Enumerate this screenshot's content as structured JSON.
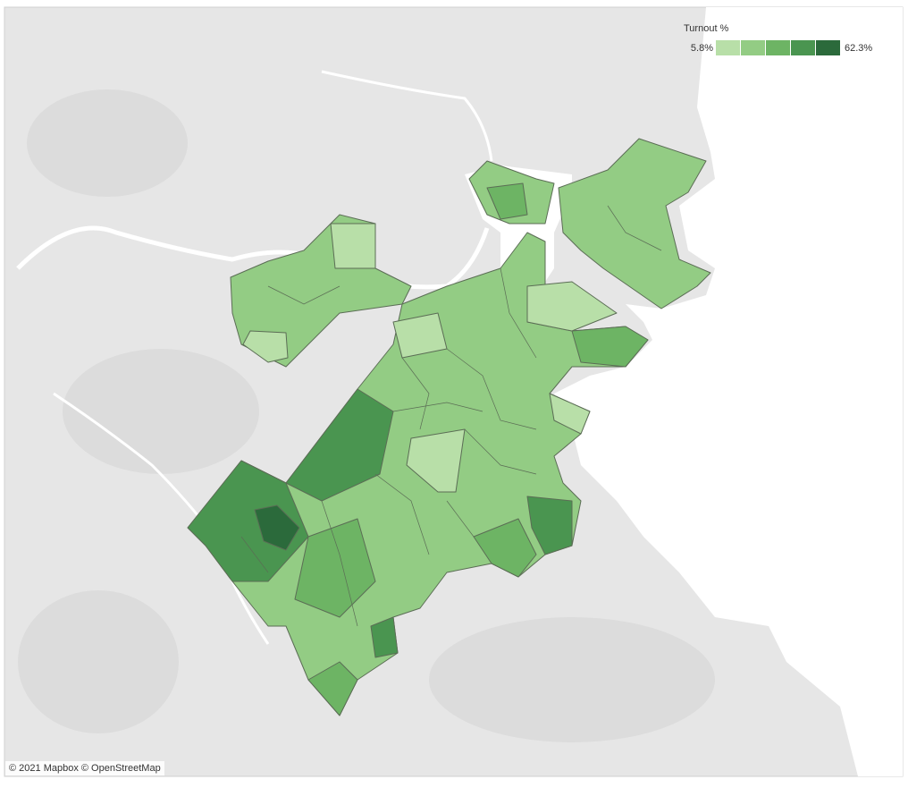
{
  "legend": {
    "title": "Turnout %",
    "min_label": "5.8%",
    "max_label": "62.3%",
    "colors": [
      "#b8dfa8",
      "#93cc84",
      "#6db464",
      "#4a9550",
      "#2b6a3b"
    ]
  },
  "attribution": "© 2021 Mapbox © OpenStreetMap"
}
